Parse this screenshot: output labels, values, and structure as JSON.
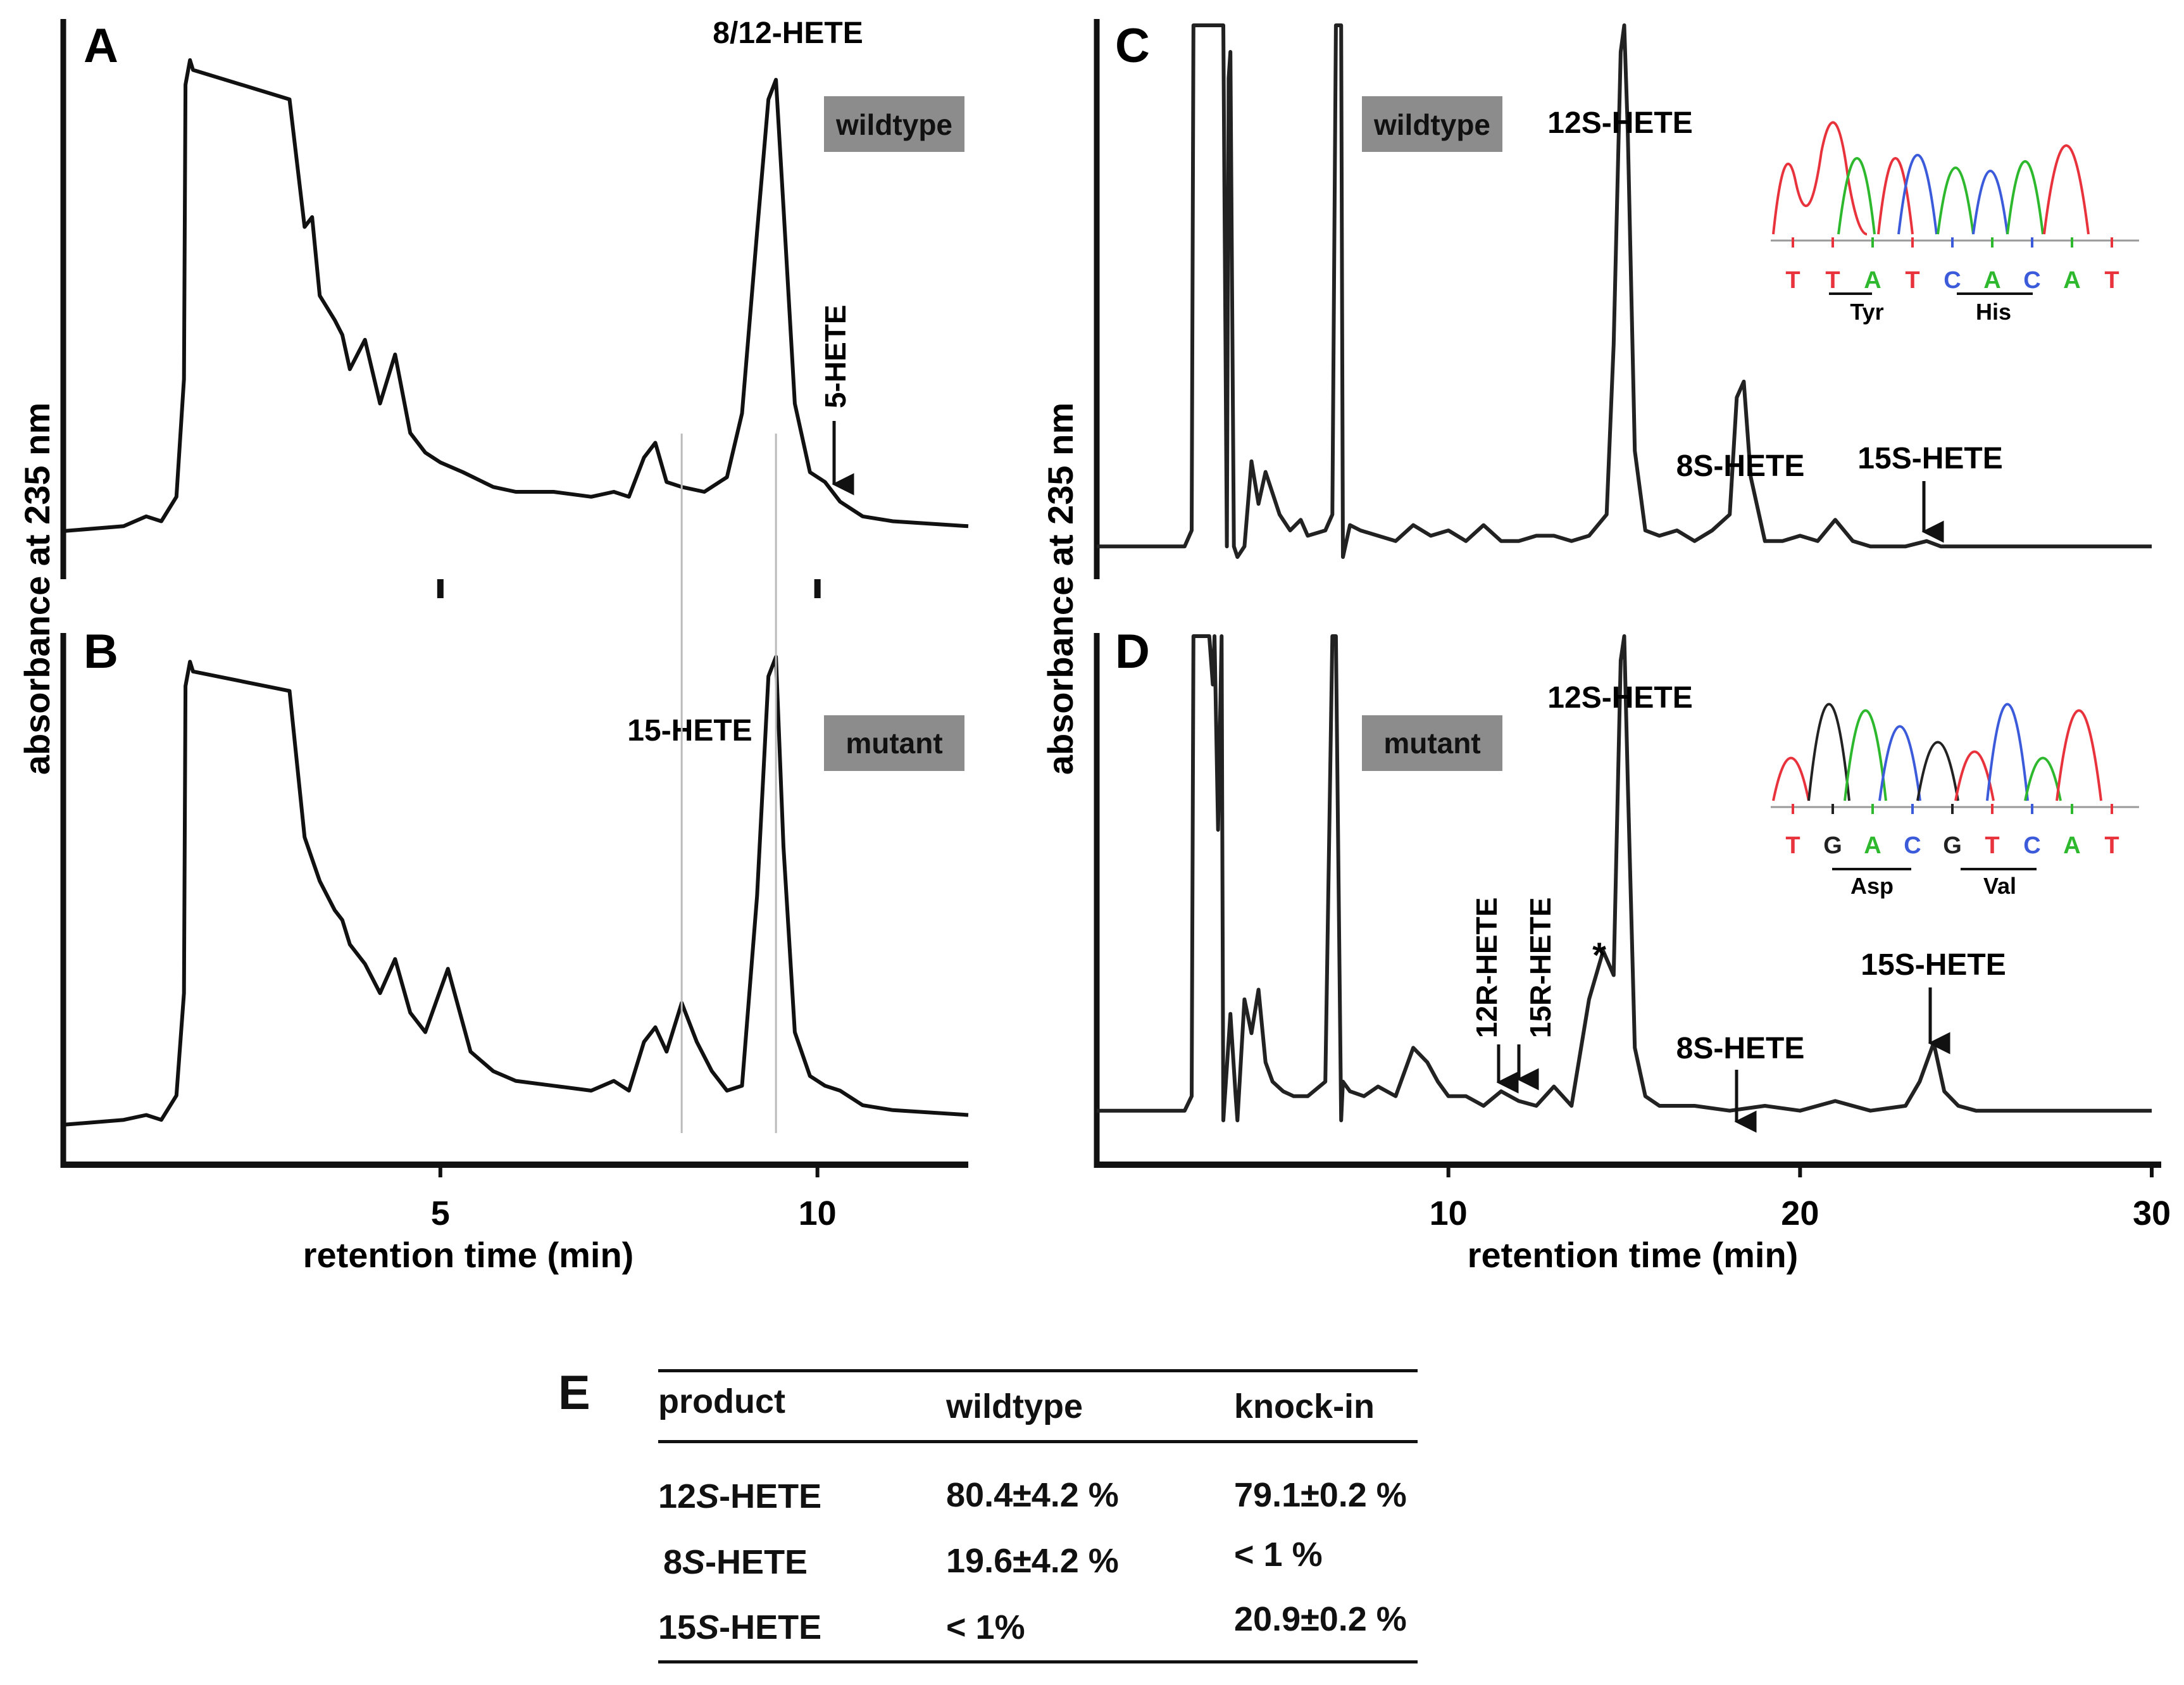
{
  "chart_data": [
    {
      "panel": "A",
      "type": "line",
      "title": "",
      "tag": "wildtype",
      "xlabel": "retention time (min)",
      "ylabel": "absorbance at 235 nm",
      "xlim": [
        0,
        12
      ],
      "ylim": [
        0,
        1
      ],
      "xticks": [
        5,
        10
      ],
      "x": [
        0.0,
        0.8,
        1.1,
        1.3,
        1.5,
        1.6,
        1.62,
        1.68,
        1.72,
        3.0,
        3.2,
        3.3,
        3.4,
        3.6,
        3.7,
        3.8,
        4.0,
        4.2,
        4.4,
        4.6,
        4.8,
        5.0,
        5.3,
        5.7,
        6.0,
        6.5,
        7.0,
        7.3,
        7.5,
        7.7,
        7.85,
        8.0,
        8.2,
        8.5,
        8.8,
        9.0,
        9.2,
        9.35,
        9.45,
        9.55,
        9.7,
        9.9,
        10.1,
        10.3,
        10.6,
        11.0,
        12.0
      ],
      "y": [
        0.04,
        0.05,
        0.07,
        0.06,
        0.11,
        0.35,
        0.95,
        1.0,
        0.98,
        0.92,
        0.66,
        0.68,
        0.52,
        0.47,
        0.44,
        0.37,
        0.43,
        0.3,
        0.4,
        0.24,
        0.2,
        0.18,
        0.16,
        0.13,
        0.12,
        0.12,
        0.11,
        0.12,
        0.11,
        0.19,
        0.22,
        0.14,
        0.13,
        0.12,
        0.15,
        0.28,
        0.65,
        0.92,
        0.96,
        0.7,
        0.3,
        0.16,
        0.14,
        0.1,
        0.07,
        0.06,
        0.05
      ],
      "annotations": [
        {
          "text": "8/12-HETE",
          "x": 9.45
        },
        {
          "text": "5-HETE",
          "x": 10.1,
          "arrow": true
        }
      ]
    },
    {
      "panel": "B",
      "type": "line",
      "title": "",
      "tag": "mutant",
      "xlabel": "retention time (min)",
      "ylabel": "absorbance at 235 nm",
      "xlim": [
        0,
        12
      ],
      "ylim": [
        0,
        1
      ],
      "xticks": [
        5,
        10
      ],
      "x": [
        0.0,
        0.8,
        1.1,
        1.3,
        1.5,
        1.6,
        1.62,
        1.68,
        1.72,
        3.0,
        3.2,
        3.4,
        3.6,
        3.7,
        3.8,
        4.0,
        4.2,
        4.4,
        4.6,
        4.8,
        5.1,
        5.4,
        5.7,
        6.0,
        6.5,
        7.0,
        7.3,
        7.5,
        7.7,
        7.85,
        8.0,
        8.2,
        8.4,
        8.6,
        8.8,
        9.0,
        9.2,
        9.35,
        9.45,
        9.55,
        9.7,
        9.9,
        10.1,
        10.3,
        10.6,
        11.0,
        12.0
      ],
      "y": [
        0.03,
        0.04,
        0.05,
        0.04,
        0.09,
        0.3,
        0.93,
        0.98,
        0.96,
        0.92,
        0.62,
        0.53,
        0.47,
        0.45,
        0.4,
        0.36,
        0.3,
        0.37,
        0.26,
        0.22,
        0.35,
        0.18,
        0.14,
        0.12,
        0.11,
        0.1,
        0.12,
        0.1,
        0.2,
        0.23,
        0.18,
        0.28,
        0.2,
        0.14,
        0.1,
        0.11,
        0.5,
        0.95,
        0.99,
        0.6,
        0.22,
        0.13,
        0.11,
        0.1,
        0.07,
        0.06,
        0.05
      ],
      "annotations": [
        {
          "text": "15-HETE",
          "x": 8.2
        }
      ]
    },
    {
      "panel": "C",
      "type": "line",
      "title": "",
      "tag": "wildtype",
      "xlabel": "retention time (min)",
      "ylabel": "absorbance at 235 nm",
      "xlim": [
        0,
        30
      ],
      "ylim": [
        0,
        1
      ],
      "xticks": [
        10,
        20,
        30
      ],
      "x": [
        0.0,
        2.5,
        2.7,
        2.75,
        3.6,
        3.7,
        3.75,
        3.8,
        3.9,
        4.0,
        4.2,
        4.4,
        4.6,
        4.8,
        5.0,
        5.2,
        5.5,
        5.8,
        6.0,
        6.5,
        6.7,
        6.8,
        6.95,
        7.0,
        7.2,
        7.5,
        8.0,
        8.5,
        9.0,
        9.5,
        10.0,
        10.5,
        11.0,
        11.5,
        12.0,
        12.5,
        13.0,
        13.5,
        14.0,
        14.5,
        14.7,
        14.9,
        15.0,
        15.1,
        15.3,
        15.6,
        16.0,
        16.5,
        17.0,
        17.5,
        18.0,
        18.2,
        18.4,
        18.6,
        19.0,
        19.5,
        20.0,
        20.5,
        21.0,
        21.5,
        22.0,
        23.0,
        23.6,
        24.0,
        24.5,
        25.0,
        26.0,
        28.0,
        30.0
      ],
      "y": [
        0.02,
        0.02,
        0.05,
        1.0,
        1.0,
        0.02,
        0.9,
        0.95,
        0.02,
        0.0,
        0.02,
        0.18,
        0.1,
        0.16,
        0.12,
        0.08,
        0.05,
        0.07,
        0.04,
        0.05,
        0.08,
        1.0,
        1.0,
        0.0,
        0.06,
        0.05,
        0.04,
        0.03,
        0.06,
        0.04,
        0.05,
        0.03,
        0.06,
        0.03,
        0.03,
        0.04,
        0.04,
        0.03,
        0.04,
        0.08,
        0.4,
        0.95,
        1.0,
        0.8,
        0.2,
        0.05,
        0.04,
        0.05,
        0.03,
        0.05,
        0.08,
        0.3,
        0.33,
        0.15,
        0.03,
        0.03,
        0.04,
        0.03,
        0.07,
        0.03,
        0.02,
        0.02,
        0.03,
        0.02,
        0.02,
        0.02,
        0.02,
        0.02,
        0.02
      ],
      "annotations": [
        {
          "text": "12S-HETE",
          "x": 15.0
        },
        {
          "text": "8S-HETE",
          "x": 18.4
        },
        {
          "text": "15S-HETE",
          "x": 23.6,
          "arrow": true
        }
      ]
    },
    {
      "panel": "D",
      "type": "line",
      "title": "",
      "tag": "mutant",
      "xlabel": "retention time (min)",
      "ylabel": "absorbance at 235 nm",
      "xlim": [
        0,
        30
      ],
      "ylim": [
        0,
        1
      ],
      "xticks": [
        10,
        20,
        30
      ],
      "x": [
        0.0,
        2.5,
        2.7,
        2.75,
        3.2,
        3.3,
        3.35,
        3.45,
        3.55,
        3.6,
        3.8,
        3.95,
        4.0,
        4.2,
        4.4,
        4.6,
        4.8,
        5.0,
        5.3,
        5.6,
        6.0,
        6.5,
        6.7,
        6.8,
        6.95,
        7.0,
        7.2,
        7.6,
        8.0,
        8.5,
        9.0,
        9.4,
        9.7,
        10.0,
        10.5,
        11.0,
        11.5,
        12.0,
        12.5,
        13.0,
        13.5,
        14.0,
        14.4,
        14.7,
        14.9,
        15.0,
        15.1,
        15.3,
        15.6,
        16.0,
        17.0,
        18.0,
        19.0,
        20.0,
        21.0,
        22.0,
        23.0,
        23.4,
        23.8,
        24.1,
        24.5,
        25.0,
        26.0,
        28.0,
        30.0
      ],
      "y": [
        0.02,
        0.02,
        0.05,
        1.0,
        1.0,
        0.9,
        1.0,
        0.6,
        1.0,
        0.0,
        0.22,
        0.05,
        0.0,
        0.25,
        0.18,
        0.27,
        0.12,
        0.08,
        0.06,
        0.05,
        0.05,
        0.08,
        1.0,
        1.0,
        0.0,
        0.08,
        0.06,
        0.05,
        0.07,
        0.05,
        0.15,
        0.12,
        0.08,
        0.05,
        0.05,
        0.03,
        0.06,
        0.04,
        0.03,
        0.07,
        0.03,
        0.25,
        0.35,
        0.3,
        0.95,
        1.0,
        0.7,
        0.15,
        0.05,
        0.03,
        0.03,
        0.02,
        0.03,
        0.02,
        0.04,
        0.02,
        0.03,
        0.08,
        0.16,
        0.06,
        0.03,
        0.02,
        0.02,
        0.02,
        0.02
      ],
      "annotations": [
        {
          "text": "12S-HETE",
          "x": 15.0
        },
        {
          "text": "12R-HETE",
          "x": 11.5,
          "arrow": true
        },
        {
          "text": "15R-HETE",
          "x": 12.0,
          "arrow": true
        },
        {
          "text": "*",
          "x": 14.4
        },
        {
          "text": "8S-HETE",
          "x": 18.4,
          "arrow": true
        },
        {
          "text": "15S-HETE",
          "x": 23.8,
          "arrow": true
        }
      ]
    }
  ],
  "panels": {
    "A": {
      "label": "A",
      "tag": "wildtype",
      "peak_main": "8/12-HETE",
      "peak_minor": "5-HETE"
    },
    "B": {
      "label": "B",
      "tag": "mutant",
      "peak_minor": "15-HETE"
    },
    "C": {
      "label": "C",
      "tag": "wildtype",
      "peak_12s": "12S-HETE",
      "peak_8s": "8S-HETE",
      "peak_15s": "15S-HETE"
    },
    "D": {
      "label": "D",
      "tag": "mutant",
      "peak_12s": "12S-HETE",
      "peak_12r": "12R-HETE",
      "peak_15r": "15R-HETE",
      "star": "*",
      "peak_8s": "8S-HETE",
      "peak_15s": "15S-HETE"
    }
  },
  "axes": {
    "ylabel": "absorbance at 235 nm",
    "xlabel": "retention time (min)",
    "left_ticks": [
      "5",
      "10"
    ],
    "right_ticks": [
      "10",
      "20",
      "30"
    ]
  },
  "sequence_c": {
    "bases": [
      "T",
      "T",
      "A",
      "T",
      "C",
      "A",
      "C",
      "A",
      "T"
    ],
    "codons": [
      "Tyr",
      "His"
    ]
  },
  "sequence_d": {
    "bases": [
      "T",
      "G",
      "A",
      "C",
      "G",
      "T",
      "C",
      "A",
      "T"
    ],
    "codons": [
      "Asp",
      "Val"
    ]
  },
  "base_colors": {
    "T": "#e8323c",
    "A": "#2eb82e",
    "C": "#3b5bdb",
    "G": "#222222"
  },
  "table": {
    "label": "E",
    "headers": [
      "product",
      "wildtype",
      "knock-in"
    ],
    "rows": [
      {
        "product_num": "12",
        "product_s": "S",
        "product_rest": "-HETE",
        "wildtype": "80.4±4.2 %",
        "knockin": "79.1±0.2 %"
      },
      {
        "product_num": "8",
        "product_s": "S",
        "product_rest": "-HETE",
        "wildtype": "19.6±4.2 %",
        "knockin": "< 1 %"
      },
      {
        "product_num": "15",
        "product_s": "S",
        "product_rest": "-HETE",
        "wildtype": "< 1%",
        "knockin": "20.9±0.2 %"
      }
    ]
  }
}
